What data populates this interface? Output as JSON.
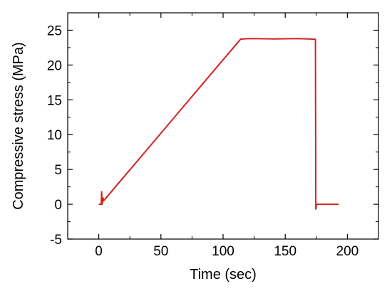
{
  "chart_data": {
    "type": "line",
    "title": "",
    "xlabel": "Time (sec)",
    "ylabel": "Compressive stress (MPa)",
    "xlim": [
      -25,
      225
    ],
    "ylim": [
      -5,
      27.5
    ],
    "x_ticks": [
      0,
      50,
      100,
      150,
      200
    ],
    "y_ticks": [
      -5,
      0,
      5,
      10,
      15,
      20,
      25
    ],
    "x_tick_labels": [
      "0",
      "50",
      "100",
      "150",
      "200"
    ],
    "y_tick_labels": [
      "-5",
      "0",
      "5",
      "10",
      "15",
      "20",
      "25"
    ],
    "grid": false,
    "legend": "none",
    "series": [
      {
        "color": "#d62020",
        "x": [
          0,
          2,
          2.3,
          2.6,
          3,
          3.5,
          3.9,
          114,
          120,
          140,
          160,
          174,
          174.3,
          174.6,
          175.2,
          176,
          193
        ],
        "y": [
          0,
          0,
          1.8,
          0,
          0.3,
          0.9,
          0.5,
          23.7,
          23.8,
          23.75,
          23.8,
          23.7,
          23.7,
          -0.7,
          0,
          0,
          0
        ]
      }
    ]
  }
}
